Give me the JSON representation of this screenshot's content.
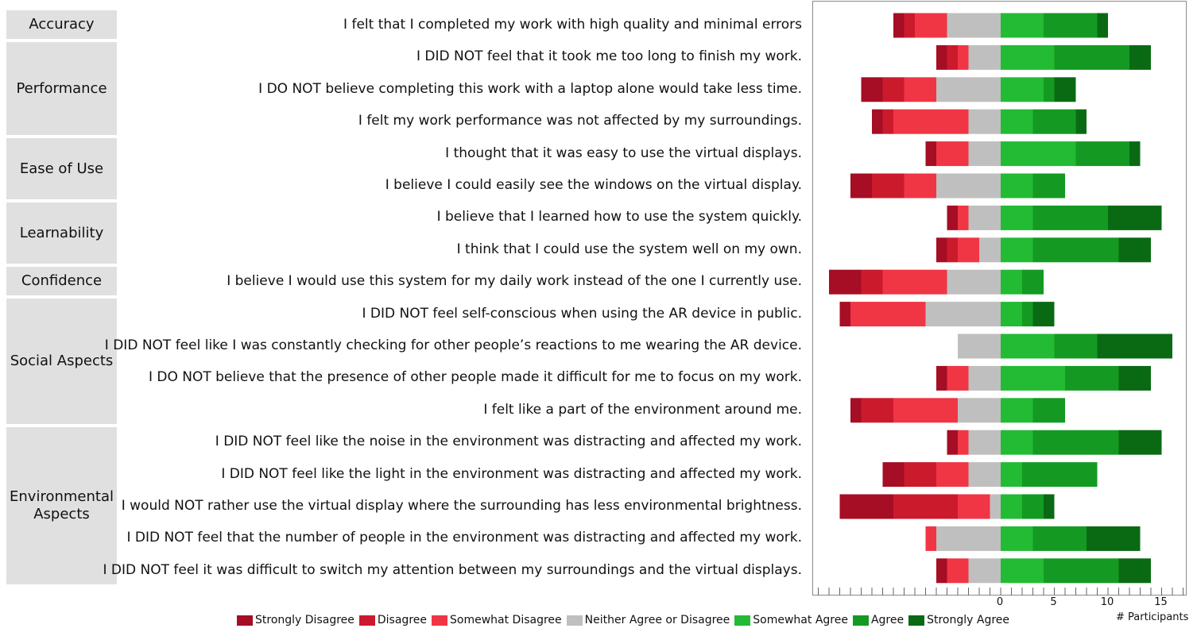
{
  "chart_data": {
    "type": "bar",
    "orientation": "horizontal",
    "stacked": "diverging",
    "xlabel": "# Participants",
    "xlim": [
      -17.5,
      17.5
    ],
    "xticks": [
      0,
      5,
      10,
      15
    ],
    "legend_position": "bottom",
    "groups": [
      {
        "label": "Accuracy",
        "rows": [
          0
        ]
      },
      {
        "label": "Performance",
        "rows": [
          1,
          2,
          3
        ]
      },
      {
        "label": "Ease of Use",
        "rows": [
          4,
          5
        ]
      },
      {
        "label": "Learnability",
        "rows": [
          6,
          7
        ]
      },
      {
        "label": "Confidence",
        "rows": [
          8
        ]
      },
      {
        "label": "Social Aspects",
        "rows": [
          9,
          10,
          11,
          12
        ]
      },
      {
        "label": "Environmental Aspects",
        "rows": [
          13,
          14,
          15,
          16,
          17
        ]
      }
    ],
    "categories": [
      "I felt that I completed my work with high quality and minimal errors",
      "I DID NOT feel that it took me too long to finish my work.",
      "I DO NOT believe completing this work with a laptop alone would take less time.",
      "I felt my work performance was not affected by my surroundings.",
      "I thought that it was easy to use the virtual displays.",
      "I believe I could easily see the windows on the virtual display.",
      "I believe that I learned how to use the system quickly.",
      "I think that I could use the system well on my own.",
      "I believe I would use this system for my daily work instead of the one I currently use.",
      "I DID NOT feel self-conscious when using the AR device in public.",
      "I DID NOT feel like I was constantly checking for other people’s reactions to me wearing the AR device.",
      "I DO NOT believe that the presence of other people made it difficult for me to focus on my work.",
      "I felt like a part of the environment around me.",
      "I DID NOT feel like the noise in the environment was distracting and affected my work.",
      "I DID NOT feel like the light in the environment was distracting and affected my work.",
      "I would NOT rather use the virtual display where the surrounding has less environmental brightness.",
      "I DID NOT feel that the number of people in the environment was distracting and affected my work.",
      "I DID NOT feel it was difficult to switch my attention between my surroundings and the virtual displays."
    ],
    "series": [
      {
        "name": "Strongly Disagree",
        "color": "#a50e25",
        "values": [
          1,
          1,
          2,
          1,
          1,
          2,
          1,
          1,
          3,
          1,
          0,
          1,
          1,
          1,
          2,
          5,
          0,
          1
        ]
      },
      {
        "name": "Disagree",
        "color": "#cc1a2d",
        "values": [
          1,
          1,
          2,
          1,
          0,
          3,
          0,
          1,
          2,
          0,
          0,
          0,
          3,
          0,
          3,
          6,
          0,
          0
        ]
      },
      {
        "name": "Somewhat Disagree",
        "color": "#f03545",
        "values": [
          3,
          1,
          3,
          7,
          3,
          3,
          1,
          2,
          6,
          7,
          0,
          2,
          6,
          1,
          3,
          3,
          1,
          2
        ]
      },
      {
        "name": "Neither Agree or Disagree",
        "color": "#bfbfbf",
        "values": [
          5,
          3,
          6,
          3,
          3,
          6,
          3,
          2,
          5,
          7,
          4,
          3,
          4,
          3,
          3,
          1,
          6,
          3
        ]
      },
      {
        "name": "Somewhat Agree",
        "color": "#22bb33",
        "values": [
          4,
          5,
          4,
          3,
          7,
          3,
          3,
          3,
          2,
          2,
          5,
          6,
          3,
          3,
          2,
          2,
          3,
          4
        ]
      },
      {
        "name": "Agree",
        "color": "#149a22",
        "values": [
          5,
          7,
          1,
          4,
          5,
          3,
          7,
          8,
          2,
          1,
          4,
          5,
          3,
          8,
          7,
          2,
          5,
          7
        ]
      },
      {
        "name": "Strongly Agree",
        "color": "#0a6a14",
        "values": [
          1,
          2,
          2,
          1,
          1,
          0,
          5,
          3,
          0,
          2,
          7,
          3,
          0,
          4,
          0,
          1,
          5,
          3
        ]
      }
    ]
  }
}
